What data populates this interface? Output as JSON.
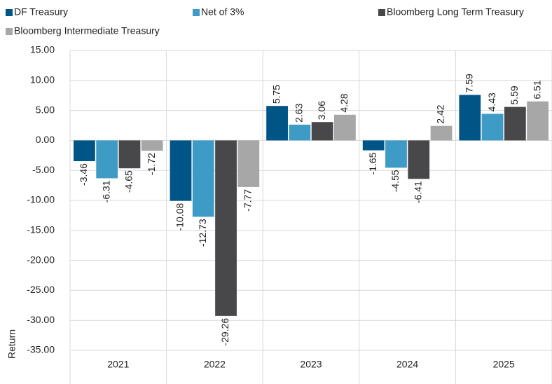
{
  "chart_data": {
    "type": "bar",
    "y_label": "Return",
    "categories": [
      "2021",
      "2022",
      "2023",
      "2024",
      "2025"
    ],
    "series": [
      {
        "name": "DF Treasury",
        "color": "#005587",
        "values": [
          -3.46,
          -10.08,
          5.75,
          -1.65,
          7.59
        ]
      },
      {
        "name": "Net of 3%",
        "color": "#3d9bc6",
        "values": [
          -6.31,
          -12.73,
          2.63,
          -4.55,
          4.43
        ]
      },
      {
        "name": "Bloomberg Long Term Treasury",
        "color": "#48484a",
        "values": [
          -4.65,
          -29.26,
          3.06,
          -6.41,
          5.59
        ]
      },
      {
        "name": "Bloomberg Intermediate Treasury",
        "color": "#a7a7a7",
        "values": [
          -1.72,
          -7.77,
          4.28,
          2.42,
          6.51
        ]
      }
    ],
    "ylim": [
      -35,
      15
    ],
    "yticks": [
      {
        "value": 15,
        "label": "15.00"
      },
      {
        "value": 10,
        "label": "10.00"
      },
      {
        "value": 5,
        "label": "5.00"
      },
      {
        "value": 0,
        "label": "0.00"
      },
      {
        "value": -5,
        "label": "-5.00"
      },
      {
        "value": -10,
        "label": "-10.00"
      },
      {
        "value": -15,
        "label": "-15.00"
      },
      {
        "value": -20,
        "label": "-20.00"
      },
      {
        "value": -25,
        "label": "-25.00"
      },
      {
        "value": -30,
        "label": "-30.00"
      },
      {
        "value": -35,
        "label": "-35.00"
      }
    ],
    "grid": true,
    "legend": "top"
  }
}
